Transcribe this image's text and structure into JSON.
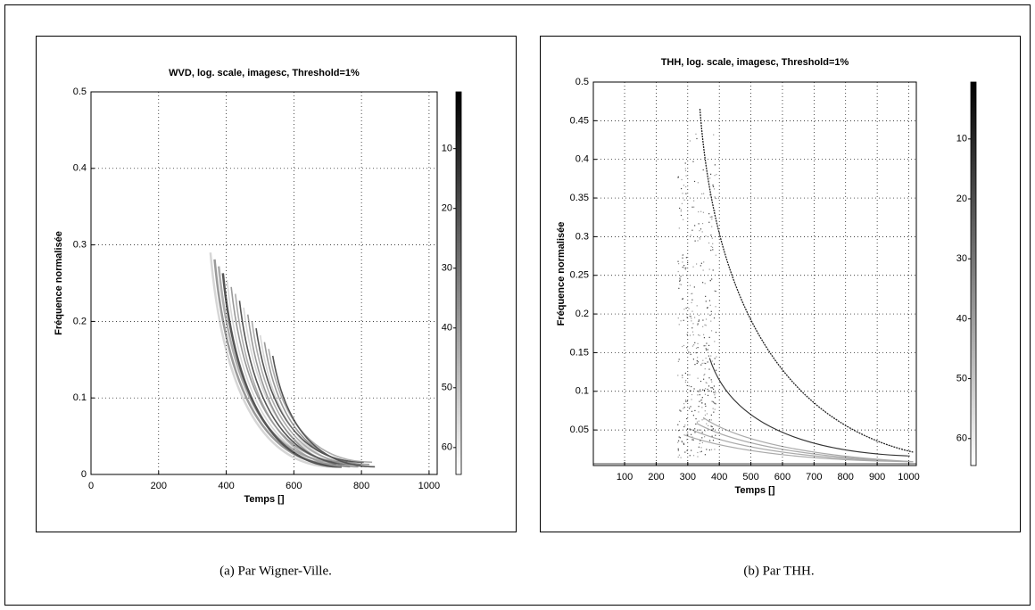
{
  "chart_data": [
    {
      "type": "heatmap",
      "title": "WVD, log. scale, imagesc, Threshold=1%",
      "xlabel": "Temps []",
      "ylabel": "Fréquence normalisée",
      "xlim": [
        0,
        1024
      ],
      "xticks": [
        0,
        200,
        400,
        600,
        800,
        1000
      ],
      "ylim": [
        0,
        0.5
      ],
      "yticks": [
        0,
        0.1,
        0.2,
        0.3,
        0.4,
        0.5
      ],
      "clim": [
        0.5,
        64.5
      ],
      "cticks": [
        10,
        20,
        30,
        40,
        50,
        60
      ],
      "grid": true,
      "caption": "(a) Par Wigner-Ville."
    },
    {
      "type": "heatmap",
      "title": "THH, log. scale, imagesc, Threshold=1%",
      "xlabel": "Temps []",
      "ylabel": "Fréquence normalisée",
      "xlim": [
        1,
        1024
      ],
      "xticks": [
        100,
        200,
        300,
        400,
        500,
        600,
        700,
        800,
        900,
        1000
      ],
      "ylim": [
        0.004,
        0.5
      ],
      "yticks": [
        0.05,
        0.1,
        0.15,
        0.2,
        0.25,
        0.3,
        0.35,
        0.4,
        0.45,
        0.5
      ],
      "clim": [
        0.5,
        64.5
      ],
      "cticks": [
        10,
        20,
        30,
        40,
        50,
        60
      ],
      "grid": true,
      "caption": "(b) Par THH."
    }
  ]
}
